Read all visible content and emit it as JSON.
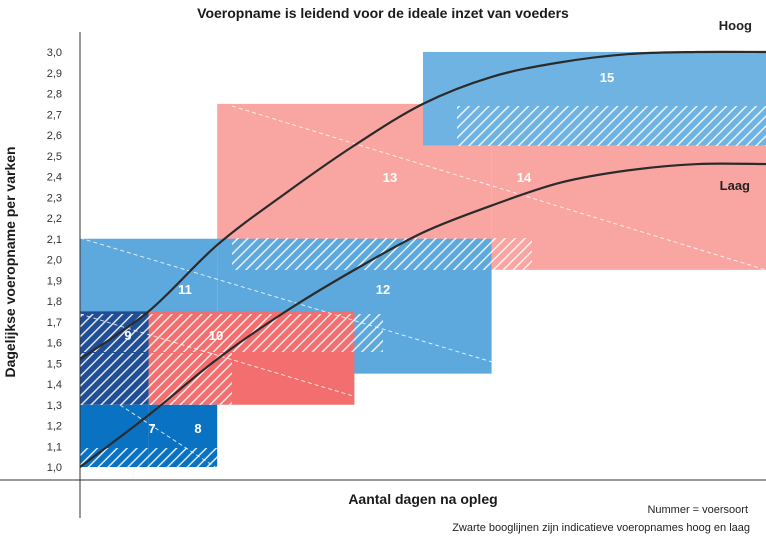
{
  "chart_data": {
    "type": "area",
    "title": "Voeropname is leidend voor de ideale inzet van voeders",
    "xlabel": "Aantal dagen na opleg",
    "ylabel": "Dagelijkse voeropname per varken",
    "y_ticks": [
      "3,0",
      "2,9",
      "2,8",
      "2,7",
      "2,6",
      "2,5",
      "2,4",
      "2,3",
      "2,2",
      "2,1",
      "2,0",
      "1,9",
      "1,8",
      "1,7",
      "1,6",
      "1,5",
      "1,4",
      "1,3",
      "1,2",
      "1,1",
      "1,0"
    ],
    "ylim": [
      0.95,
      3.05
    ],
    "xlim": [
      0,
      100
    ],
    "notes": [
      "Nummer = voersoort",
      "Zwarte booglijnen zijn indicatieve voeropnames hoog en laag"
    ],
    "colors": {
      "blue_light": "#5da8dc",
      "blue_dark": "#0a72c2",
      "blue_navy": "#1f4e96",
      "red_light": "#f9a19d",
      "red_mid": "#f36f6f"
    },
    "feed_zones": [
      {
        "number": "7",
        "x": [
          0,
          10
        ],
        "y": [
          1.0,
          1.3
        ],
        "color": "#0a72c2"
      },
      {
        "number": "8",
        "x": [
          10,
          20
        ],
        "y": [
          1.0,
          1.3
        ],
        "color": "#0a72c2"
      },
      {
        "number": "9",
        "x": [
          0,
          10
        ],
        "y": [
          1.3,
          1.75
        ],
        "color": "#1f4e96"
      },
      {
        "number": "10",
        "x": [
          10,
          40
        ],
        "y": [
          1.3,
          1.75
        ],
        "color": "#f36f6f"
      },
      {
        "number": "11",
        "x": [
          0,
          20
        ],
        "y": [
          1.45,
          2.1
        ],
        "color": "#5da8dc"
      },
      {
        "number": "12",
        "x": [
          20,
          60
        ],
        "y": [
          1.45,
          2.1
        ],
        "color": "#5da8dc"
      },
      {
        "number": "13",
        "x": [
          20,
          60
        ],
        "y": [
          1.95,
          2.75
        ],
        "color": "#f9a19d"
      },
      {
        "number": "14",
        "x": [
          60,
          100
        ],
        "y": [
          1.95,
          2.75
        ],
        "color": "#f9a19d"
      },
      {
        "number": "15",
        "x": [
          50,
          100
        ],
        "y": [
          2.55,
          3.0
        ],
        "color": "#6fb3e3"
      }
    ],
    "series": [
      {
        "name": "Hoog",
        "points": [
          [
            0,
            1.52
          ],
          [
            10,
            1.75
          ],
          [
            20,
            2.07
          ],
          [
            30,
            2.32
          ],
          [
            40,
            2.55
          ],
          [
            50,
            2.75
          ],
          [
            60,
            2.88
          ],
          [
            70,
            2.95
          ],
          [
            80,
            2.99
          ],
          [
            90,
            3.0
          ],
          [
            100,
            3.0
          ]
        ]
      },
      {
        "name": "Laag",
        "points": [
          [
            0,
            1.0
          ],
          [
            10,
            1.25
          ],
          [
            20,
            1.52
          ],
          [
            30,
            1.75
          ],
          [
            40,
            1.95
          ],
          [
            50,
            2.13
          ],
          [
            60,
            2.26
          ],
          [
            70,
            2.37
          ],
          [
            80,
            2.43
          ],
          [
            90,
            2.46
          ],
          [
            100,
            2.46
          ]
        ]
      }
    ]
  }
}
